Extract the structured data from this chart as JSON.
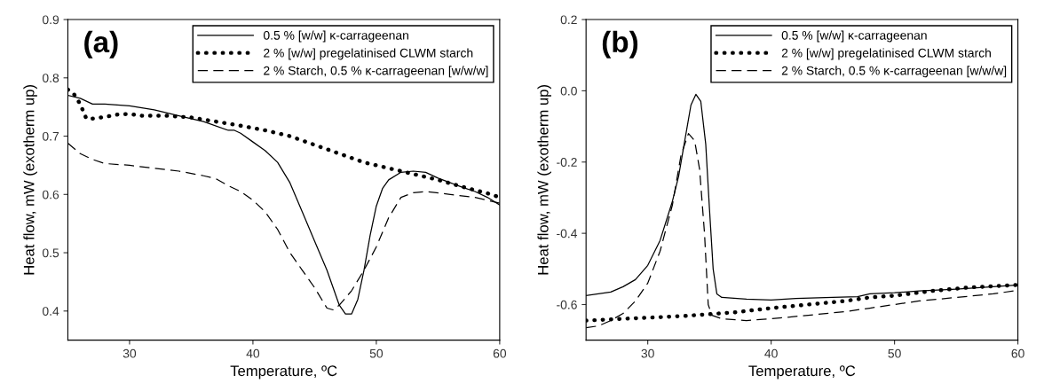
{
  "chart_data": [
    {
      "type": "line",
      "title": "(a)",
      "xlabel": "Temperature, ºC",
      "ylabel": "Heat flow, mW (exotherm up)",
      "xlim": [
        25,
        60
      ],
      "xticks": [
        30,
        40,
        50,
        60
      ],
      "ylim": [
        0.35,
        0.9
      ],
      "yticks": [
        0.4,
        0.5,
        0.6,
        0.7,
        0.8,
        0.9
      ],
      "grid": false,
      "legend": "top right",
      "series": [
        {
          "name": "0.5 % [w/w] κ-carrageenan",
          "color": "#000000",
          "line_style": "solid",
          "x": [
            25,
            26,
            27,
            28,
            30,
            32,
            34,
            36,
            38,
            38.5,
            39,
            40,
            41,
            42,
            43,
            44,
            45,
            46,
            46.5,
            47,
            47.5,
            48,
            48.5,
            49,
            49.5,
            50,
            50.5,
            51,
            52,
            53,
            54,
            55,
            56,
            57,
            58,
            59,
            60
          ],
          "values": [
            0.77,
            0.765,
            0.755,
            0.755,
            0.752,
            0.745,
            0.735,
            0.725,
            0.71,
            0.71,
            0.705,
            0.69,
            0.675,
            0.655,
            0.62,
            0.57,
            0.52,
            0.47,
            0.44,
            0.41,
            0.395,
            0.395,
            0.42,
            0.47,
            0.53,
            0.58,
            0.61,
            0.625,
            0.638,
            0.64,
            0.638,
            0.628,
            0.62,
            0.612,
            0.605,
            0.595,
            0.582
          ]
        },
        {
          "name": "2 % [w/w] pregelatinised CLWM starch",
          "color": "#000000",
          "line_style": "dotted",
          "x": [
            25,
            25.5,
            26,
            26.5,
            27,
            28,
            29,
            30,
            31,
            33,
            35,
            37,
            39,
            41,
            43,
            45,
            47,
            49,
            51,
            53,
            55,
            57,
            59,
            60
          ],
          "values": [
            0.78,
            0.772,
            0.755,
            0.73,
            0.73,
            0.733,
            0.737,
            0.738,
            0.735,
            0.735,
            0.732,
            0.725,
            0.718,
            0.71,
            0.7,
            0.685,
            0.67,
            0.655,
            0.645,
            0.635,
            0.625,
            0.613,
            0.602,
            0.595
          ]
        },
        {
          "name": "2 % Starch, 0.5 % κ-carrageenan [w/w/w]",
          "color": "#000000",
          "line_style": "dashed",
          "x": [
            25,
            26,
            27,
            28,
            30,
            32,
            34,
            36,
            37,
            38,
            39,
            40,
            41,
            42,
            43,
            44,
            45,
            46,
            46.5,
            47,
            48,
            49,
            50,
            51,
            52,
            53,
            54,
            56,
            58,
            60
          ],
          "values": [
            0.688,
            0.67,
            0.66,
            0.653,
            0.65,
            0.645,
            0.64,
            0.632,
            0.627,
            0.615,
            0.605,
            0.59,
            0.57,
            0.54,
            0.5,
            0.47,
            0.44,
            0.405,
            0.402,
            0.41,
            0.435,
            0.47,
            0.51,
            0.56,
            0.595,
            0.603,
            0.605,
            0.6,
            0.595,
            0.585
          ]
        }
      ]
    },
    {
      "type": "line",
      "title": "(b)",
      "xlabel": "Temperature, ºC",
      "ylabel": "Heat flow, mW (exotherm up)",
      "xlim": [
        25,
        60
      ],
      "xticks": [
        30,
        40,
        50,
        60
      ],
      "ylim": [
        -0.7,
        0.2
      ],
      "yticks": [
        -0.6,
        -0.4,
        -0.2,
        {
          "value": 0,
          "label": "0.0"
        },
        0.2
      ],
      "grid": false,
      "legend": "top right",
      "series": [
        {
          "name": "0.5 % [w/w] κ-carrageenan",
          "color": "#000000",
          "line_style": "solid",
          "x": [
            25,
            27,
            28,
            29,
            30,
            31,
            32,
            32.5,
            33,
            33.5,
            33.9,
            34.3,
            34.7,
            35,
            35.3,
            35.6,
            36,
            38,
            40,
            42,
            45,
            47,
            48,
            50,
            52,
            55,
            58,
            60
          ],
          "values": [
            -0.575,
            -0.565,
            -0.55,
            -0.53,
            -0.49,
            -0.42,
            -0.31,
            -0.24,
            -0.14,
            -0.04,
            -0.01,
            -0.03,
            -0.15,
            -0.33,
            -0.5,
            -0.57,
            -0.58,
            -0.585,
            -0.587,
            -0.583,
            -0.58,
            -0.578,
            -0.57,
            -0.567,
            -0.562,
            -0.557,
            -0.55,
            -0.545
          ]
        },
        {
          "name": "2 % [w/w] pregelatinised CLWM starch",
          "color": "#000000",
          "line_style": "dotted",
          "x": [
            25,
            28,
            30,
            33,
            35,
            37,
            40,
            43,
            46,
            48,
            50,
            53,
            56,
            60
          ],
          "values": [
            -0.645,
            -0.64,
            -0.637,
            -0.632,
            -0.627,
            -0.622,
            -0.61,
            -0.6,
            -0.59,
            -0.58,
            -0.575,
            -0.562,
            -0.552,
            -0.545
          ]
        },
        {
          "name": "2 % Starch, 0.5 % κ-carrageenan [w/w/w]",
          "color": "#000000",
          "line_style": "dashed",
          "x": [
            25,
            26,
            27,
            28,
            29,
            30,
            31,
            32,
            32.7,
            33.3,
            33.8,
            34.2,
            34.6,
            34.9,
            35.2,
            36,
            38,
            40,
            43,
            46,
            48,
            50,
            52,
            55,
            58,
            60
          ],
          "values": [
            -0.665,
            -0.66,
            -0.645,
            -0.625,
            -0.59,
            -0.54,
            -0.45,
            -0.32,
            -0.18,
            -0.12,
            -0.14,
            -0.22,
            -0.4,
            -0.6,
            -0.63,
            -0.64,
            -0.645,
            -0.64,
            -0.63,
            -0.62,
            -0.61,
            -0.6,
            -0.59,
            -0.58,
            -0.57,
            -0.56
          ]
        }
      ]
    }
  ]
}
